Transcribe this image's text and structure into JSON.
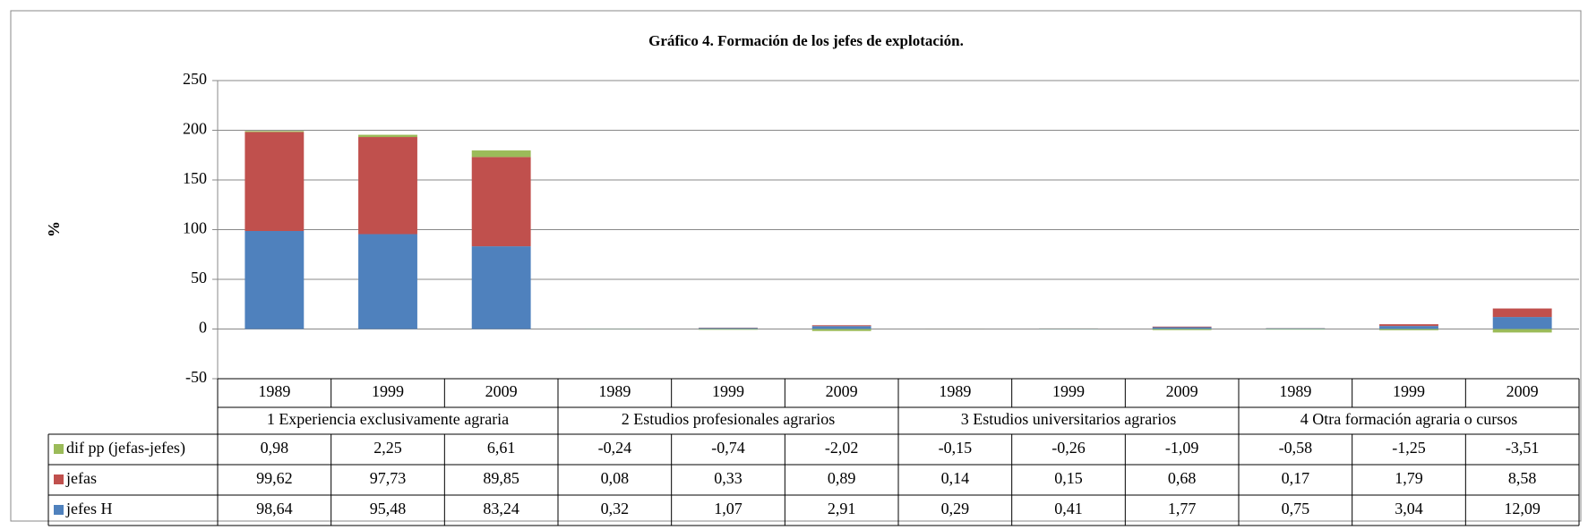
{
  "chart_data": {
    "type": "bar",
    "stacked": true,
    "title": "Gráfico 4. Formación de los jefes de explotación.",
    "y_label": "%",
    "categories": [
      "1989",
      "1999",
      "2009",
      "1989",
      "1999",
      "2009",
      "1989",
      "1999",
      "2009",
      "1989",
      "1999",
      "2009"
    ],
    "groups": [
      "1 Experiencia exclusivamente agraria",
      "2 Estudios profesionales agrarios",
      "3 Estudios  universitarios agrarios",
      "4 Otra formación agraria o cursos"
    ],
    "series": [
      {
        "name": "dif pp (jefas-jefes)",
        "color": "#9bbb59",
        "values": [
          0.98,
          2.25,
          6.61,
          -0.24,
          -0.74,
          -2.02,
          -0.15,
          -0.26,
          -1.09,
          -0.58,
          -1.25,
          -3.51
        ],
        "value_labels": [
          "0,98",
          "2,25",
          "6,61",
          "-0,24",
          "-0,74",
          "-2,02",
          "-0,15",
          "-0,26",
          "-1,09",
          "-0,58",
          "-1,25",
          "-3,51"
        ]
      },
      {
        "name": "jefas",
        "color": "#c0504d",
        "values": [
          99.62,
          97.73,
          89.85,
          0.08,
          0.33,
          0.89,
          0.14,
          0.15,
          0.68,
          0.17,
          1.79,
          8.58
        ],
        "value_labels": [
          "99,62",
          "97,73",
          "89,85",
          "0,08",
          "0,33",
          "0,89",
          "0,14",
          "0,15",
          "0,68",
          "0,17",
          "1,79",
          "8,58"
        ]
      },
      {
        "name": "jefes H",
        "color": "#4f81bd",
        "values": [
          98.64,
          95.48,
          83.24,
          0.32,
          1.07,
          2.91,
          0.29,
          0.41,
          1.77,
          0.75,
          3.04,
          12.09
        ],
        "value_labels": [
          "98,64",
          "95,48",
          "83,24",
          "0,32",
          "1,07",
          "2,91",
          "0,29",
          "0,41",
          "1,77",
          "0,75",
          "3,04",
          "12,09"
        ]
      }
    ],
    "ylim": [
      -50,
      250
    ],
    "yticks": [
      -50,
      0,
      50,
      100,
      150,
      200,
      250
    ],
    "grid": true
  }
}
